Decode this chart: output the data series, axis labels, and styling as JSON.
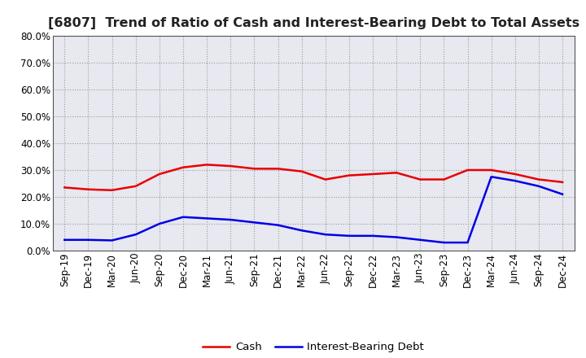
{
  "title": "[6807]  Trend of Ratio of Cash and Interest-Bearing Debt to Total Assets",
  "x_labels": [
    "Sep-19",
    "Dec-19",
    "Mar-20",
    "Jun-20",
    "Sep-20",
    "Dec-20",
    "Mar-21",
    "Jun-21",
    "Sep-21",
    "Dec-21",
    "Mar-22",
    "Jun-22",
    "Sep-22",
    "Dec-22",
    "Mar-23",
    "Jun-23",
    "Sep-23",
    "Dec-23",
    "Mar-24",
    "Jun-24",
    "Sep-24",
    "Dec-24"
  ],
  "cash": [
    0.235,
    0.228,
    0.225,
    0.24,
    0.285,
    0.31,
    0.32,
    0.315,
    0.305,
    0.305,
    0.295,
    0.265,
    0.28,
    0.285,
    0.29,
    0.265,
    0.265,
    0.3,
    0.3,
    0.285,
    0.265,
    0.255
  ],
  "interest_bearing_debt": [
    0.04,
    0.04,
    0.038,
    0.06,
    0.1,
    0.125,
    0.12,
    0.115,
    0.105,
    0.095,
    0.075,
    0.06,
    0.055,
    0.055,
    0.05,
    0.04,
    0.03,
    0.03,
    0.275,
    0.26,
    0.24,
    0.21
  ],
  "cash_color": "#e80000",
  "debt_color": "#0000e8",
  "background_color": "#ffffff",
  "grid_color": "#999999",
  "plot_bg_color": "#e8e8f0",
  "ylim": [
    0.0,
    0.8
  ],
  "yticks": [
    0.0,
    0.1,
    0.2,
    0.3,
    0.4,
    0.5,
    0.6,
    0.7,
    0.8
  ],
  "legend_cash": "Cash",
  "legend_debt": "Interest-Bearing Debt",
  "title_fontsize": 11.5,
  "axis_fontsize": 8.5,
  "legend_fontsize": 9.5
}
